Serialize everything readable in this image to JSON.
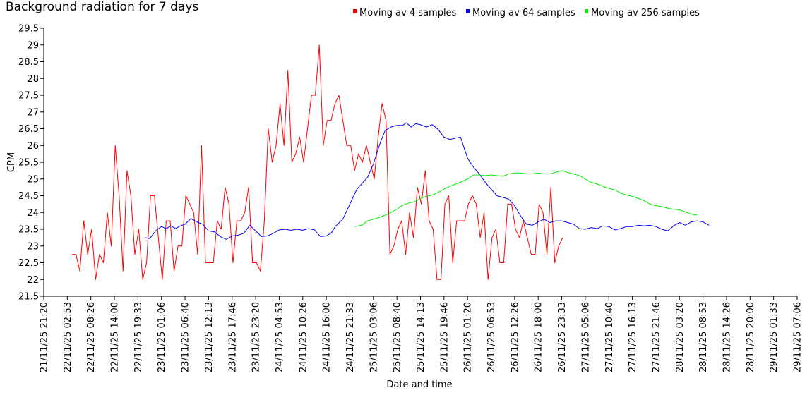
{
  "chart_data": {
    "type": "line",
    "title": "Background radiation for 7 days",
    "xlabel": "Date and time",
    "ylabel": "CPM",
    "ylim": [
      21.5,
      29.5
    ],
    "y_ticks": [
      "21.5",
      "22",
      "22.5",
      "23",
      "23.5",
      "24",
      "24.5",
      "25",
      "25.5",
      "26",
      "26.5",
      "27",
      "27.5",
      "28",
      "28.5",
      "29",
      "29.5"
    ],
    "x_ticks": [
      "21/11/25 21:20",
      "22/11/25 02:53",
      "22/11/25 08:26",
      "22/11/25 14:00",
      "22/11/25 19:33",
      "23/11/25 01:06",
      "23/11/25 06:40",
      "23/11/25 12:13",
      "23/11/25 17:46",
      "23/11/25 23:20",
      "24/11/25 04:53",
      "24/11/25 10:26",
      "24/11/25 16:00",
      "24/11/25 21:33",
      "25/11/25 03:06",
      "25/11/25 08:40",
      "25/11/25 14:13",
      "25/11/25 19:46",
      "26/11/25 01:20",
      "26/11/25 06:53",
      "26/11/25 12:26",
      "26/11/25 18:00",
      "26/11/25 23:33",
      "27/11/25 05:06",
      "27/11/25 10:40",
      "27/11/25 16:13",
      "27/11/25 21:46",
      "28/11/25 03:20",
      "28/11/25 08:53",
      "28/11/25 14:26",
      "28/11/25 20:00",
      "29/11/25 01:33",
      "29/11/25 07:06"
    ],
    "legend_position": "top-right",
    "series": [
      {
        "name": "Moving av 4 samples",
        "color": "#ff0000",
        "x_start_tick": 1.2,
        "x_step_ticks": 0.1667,
        "values": [
          22.75,
          22.75,
          22.25,
          23.75,
          22.75,
          23.5,
          22.0,
          22.75,
          22.5,
          24.0,
          23.0,
          26.0,
          24.5,
          22.25,
          25.25,
          24.5,
          22.75,
          23.5,
          22.0,
          22.5,
          24.5,
          24.5,
          23.25,
          22.0,
          23.75,
          23.75,
          22.25,
          23.0,
          23.0,
          24.5,
          24.25,
          24.0,
          22.75,
          26.0,
          22.5,
          22.5,
          22.5,
          23.75,
          23.5,
          24.75,
          24.25,
          22.5,
          23.75,
          23.75,
          24.0,
          24.75,
          22.5,
          22.5,
          22.25,
          23.75,
          26.5,
          25.5,
          26.0,
          27.25,
          26.0,
          28.25,
          25.5,
          25.75,
          26.25,
          25.5,
          26.5,
          27.5,
          27.5,
          29.0,
          26.0,
          26.75,
          26.75,
          27.25,
          27.5,
          26.75,
          26.0,
          26.0,
          25.25,
          25.75,
          25.5,
          26.0,
          25.5,
          25.0,
          26.25,
          27.25,
          26.75,
          22.75,
          23.0,
          23.5,
          23.75,
          22.75,
          24.0,
          23.25,
          24.75,
          24.25,
          25.25,
          23.75,
          23.5,
          22.0,
          22.0,
          24.25,
          24.5,
          22.5,
          23.75,
          23.75,
          23.75,
          24.25,
          24.5,
          24.25,
          23.25,
          24.0,
          22.0,
          23.25,
          23.5,
          22.5,
          22.5,
          24.25,
          24.25,
          23.5,
          23.25,
          23.75,
          23.25,
          22.75,
          22.75,
          24.25,
          24.0,
          22.75,
          24.75,
          22.5,
          23.0,
          23.25
        ]
      },
      {
        "name": "Moving av 64 samples",
        "color": "#0000ff",
        "points": [
          [
            4.3,
            23.25
          ],
          [
            4.5,
            23.22
          ],
          [
            4.75,
            23.45
          ],
          [
            5.0,
            23.58
          ],
          [
            5.2,
            23.52
          ],
          [
            5.4,
            23.6
          ],
          [
            5.6,
            23.52
          ],
          [
            5.8,
            23.6
          ],
          [
            6.0,
            23.65
          ],
          [
            6.25,
            23.82
          ],
          [
            6.5,
            23.72
          ],
          [
            6.75,
            23.65
          ],
          [
            7.0,
            23.45
          ],
          [
            7.25,
            23.42
          ],
          [
            7.5,
            23.28
          ],
          [
            7.75,
            23.2
          ],
          [
            8.0,
            23.3
          ],
          [
            8.25,
            23.32
          ],
          [
            8.5,
            23.38
          ],
          [
            8.75,
            23.62
          ],
          [
            9.0,
            23.45
          ],
          [
            9.25,
            23.28
          ],
          [
            9.5,
            23.3
          ],
          [
            9.75,
            23.38
          ],
          [
            10.0,
            23.48
          ],
          [
            10.25,
            23.5
          ],
          [
            10.5,
            23.47
          ],
          [
            10.75,
            23.5
          ],
          [
            11.0,
            23.47
          ],
          [
            11.25,
            23.52
          ],
          [
            11.5,
            23.48
          ],
          [
            11.75,
            23.28
          ],
          [
            12.0,
            23.3
          ],
          [
            12.2,
            23.38
          ],
          [
            12.4,
            23.6
          ],
          [
            12.7,
            23.8
          ],
          [
            13.0,
            24.25
          ],
          [
            13.3,
            24.7
          ],
          [
            13.5,
            24.85
          ],
          [
            13.75,
            25.05
          ],
          [
            14.0,
            25.45
          ],
          [
            14.3,
            26.1
          ],
          [
            14.5,
            26.45
          ],
          [
            14.75,
            26.55
          ],
          [
            15.0,
            26.6
          ],
          [
            15.25,
            26.6
          ],
          [
            15.4,
            26.68
          ],
          [
            15.6,
            26.55
          ],
          [
            15.8,
            26.65
          ],
          [
            16.0,
            26.62
          ],
          [
            16.25,
            26.55
          ],
          [
            16.5,
            26.62
          ],
          [
            16.75,
            26.48
          ],
          [
            17.0,
            26.25
          ],
          [
            17.25,
            26.18
          ],
          [
            17.5,
            26.22
          ],
          [
            17.7,
            26.25
          ],
          [
            18.0,
            25.62
          ],
          [
            18.25,
            25.35
          ],
          [
            18.5,
            25.15
          ],
          [
            18.75,
            24.9
          ],
          [
            19.0,
            24.7
          ],
          [
            19.25,
            24.5
          ],
          [
            19.5,
            24.45
          ],
          [
            19.75,
            24.4
          ],
          [
            20.0,
            24.2
          ],
          [
            20.25,
            23.9
          ],
          [
            20.5,
            23.65
          ],
          [
            20.75,
            23.62
          ],
          [
            21.0,
            23.72
          ],
          [
            21.25,
            23.8
          ],
          [
            21.5,
            23.7
          ],
          [
            21.75,
            23.75
          ],
          [
            22.0,
            23.75
          ],
          [
            22.25,
            23.7
          ],
          [
            22.5,
            23.65
          ],
          [
            22.75,
            23.52
          ],
          [
            23.0,
            23.5
          ],
          [
            23.25,
            23.55
          ],
          [
            23.5,
            23.52
          ],
          [
            23.75,
            23.6
          ],
          [
            24.0,
            23.58
          ],
          [
            24.25,
            23.48
          ],
          [
            24.5,
            23.52
          ],
          [
            24.75,
            23.58
          ],
          [
            25.0,
            23.58
          ],
          [
            25.25,
            23.62
          ],
          [
            25.5,
            23.6
          ],
          [
            25.75,
            23.62
          ],
          [
            26.0,
            23.58
          ],
          [
            26.25,
            23.5
          ],
          [
            26.5,
            23.45
          ],
          [
            26.75,
            23.6
          ],
          [
            27.0,
            23.7
          ],
          [
            27.25,
            23.62
          ],
          [
            27.5,
            23.72
          ],
          [
            27.75,
            23.75
          ],
          [
            28.0,
            23.72
          ],
          [
            28.25,
            23.62
          ]
        ]
      },
      {
        "name": "Moving av 256 samples",
        "color": "#00ee00",
        "points": [
          [
            13.2,
            23.58
          ],
          [
            13.5,
            23.62
          ],
          [
            13.75,
            23.75
          ],
          [
            14.0,
            23.8
          ],
          [
            14.25,
            23.85
          ],
          [
            14.5,
            23.92
          ],
          [
            14.75,
            24.0
          ],
          [
            15.0,
            24.1
          ],
          [
            15.25,
            24.22
          ],
          [
            15.5,
            24.28
          ],
          [
            15.75,
            24.32
          ],
          [
            16.0,
            24.42
          ],
          [
            16.25,
            24.48
          ],
          [
            16.5,
            24.52
          ],
          [
            16.75,
            24.6
          ],
          [
            17.0,
            24.7
          ],
          [
            17.25,
            24.78
          ],
          [
            17.5,
            24.85
          ],
          [
            17.75,
            24.92
          ],
          [
            18.0,
            25.0
          ],
          [
            18.25,
            25.12
          ],
          [
            18.5,
            25.12
          ],
          [
            18.75,
            25.1
          ],
          [
            19.0,
            25.12
          ],
          [
            19.25,
            25.1
          ],
          [
            19.5,
            25.08
          ],
          [
            19.75,
            25.15
          ],
          [
            20.0,
            25.18
          ],
          [
            20.25,
            25.18
          ],
          [
            20.5,
            25.15
          ],
          [
            20.75,
            25.15
          ],
          [
            21.0,
            25.18
          ],
          [
            21.25,
            25.15
          ],
          [
            21.5,
            25.15
          ],
          [
            21.75,
            25.2
          ],
          [
            22.0,
            25.25
          ],
          [
            22.25,
            25.2
          ],
          [
            22.5,
            25.15
          ],
          [
            22.75,
            25.1
          ],
          [
            23.0,
            25.0
          ],
          [
            23.25,
            24.9
          ],
          [
            23.5,
            24.85
          ],
          [
            23.75,
            24.78
          ],
          [
            24.0,
            24.72
          ],
          [
            24.25,
            24.68
          ],
          [
            24.5,
            24.58
          ],
          [
            24.75,
            24.52
          ],
          [
            25.0,
            24.48
          ],
          [
            25.25,
            24.42
          ],
          [
            25.5,
            24.35
          ],
          [
            25.75,
            24.25
          ],
          [
            26.0,
            24.2
          ],
          [
            26.25,
            24.18
          ],
          [
            26.5,
            24.12
          ],
          [
            26.75,
            24.1
          ],
          [
            27.0,
            24.08
          ],
          [
            27.25,
            24.02
          ],
          [
            27.5,
            23.95
          ],
          [
            27.75,
            23.92
          ]
        ]
      }
    ]
  }
}
